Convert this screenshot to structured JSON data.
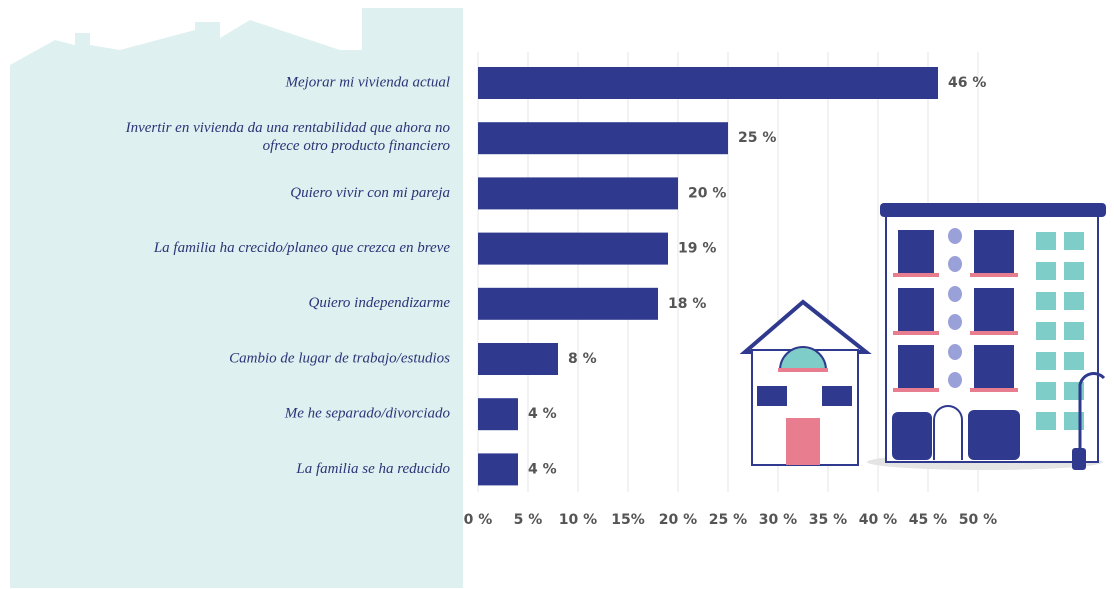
{
  "chart_data": {
    "type": "bar",
    "orientation": "horizontal",
    "categories": [
      "Mejorar mi vivienda actual",
      "Invertir en vivienda da una rentabilidad que ahora no\nofrece otro producto financiero",
      "Quiero vivir con mi pareja",
      "La familia ha crecido/planeo que crezca en breve",
      "Quiero independizarme",
      "Cambio de lugar de trabajo/estudios",
      "Me he separado/divorciado",
      "La familia se ha reducido"
    ],
    "values": [
      46,
      25,
      20,
      19,
      18,
      8,
      4,
      4
    ],
    "value_labels": [
      "46 %",
      "25  %",
      "20 %",
      "19 %",
      "18 %",
      "8 %",
      "4 %",
      "4 %"
    ],
    "color": "#2f3a8f",
    "xlim": [
      0,
      50
    ],
    "xticks": [
      {
        "value": 0,
        "label": "0 %"
      },
      {
        "value": 5,
        "label": "5 %"
      },
      {
        "value": 10,
        "label": "10 %"
      },
      {
        "value": 15,
        "label": "15%"
      },
      {
        "value": 20,
        "label": "20 %"
      },
      {
        "value": 25,
        "label": "25 %"
      },
      {
        "value": 30,
        "label": "30 %"
      },
      {
        "value": 35,
        "label": "35 %"
      },
      {
        "value": 40,
        "label": "40 %"
      },
      {
        "value": 45,
        "label": "45 %"
      },
      {
        "value": 50,
        "label": "50 %"
      }
    ],
    "grid": true
  }
}
